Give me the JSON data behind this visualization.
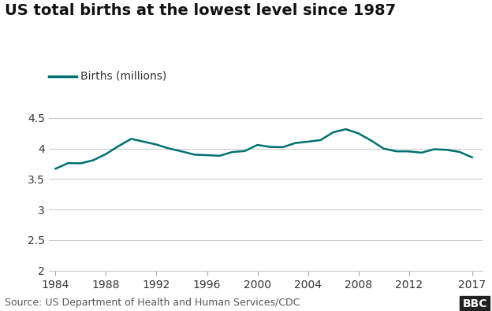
{
  "title": "US total births at the lowest level since 1987",
  "legend_label": "Births (millions)",
  "line_color": "#007070",
  "source_text": "Source: US Department of Health and Human Services/CDC",
  "bbc_text": "BBC",
  "years": [
    1984,
    1985,
    1986,
    1987,
    1988,
    1989,
    1990,
    1991,
    1992,
    1993,
    1994,
    1995,
    1996,
    1997,
    1998,
    1999,
    2000,
    2001,
    2002,
    2003,
    2004,
    2005,
    2006,
    2007,
    2008,
    2009,
    2010,
    2011,
    2012,
    2013,
    2014,
    2015,
    2016,
    2017
  ],
  "births": [
    3.669,
    3.761,
    3.757,
    3.809,
    3.91,
    4.041,
    4.158,
    4.111,
    4.065,
    4.0,
    3.953,
    3.9,
    3.891,
    3.881,
    3.942,
    3.959,
    4.059,
    4.026,
    4.022,
    4.09,
    4.112,
    4.138,
    4.266,
    4.317,
    4.248,
    4.131,
    3.999,
    3.954,
    3.953,
    3.932,
    3.988,
    3.978,
    3.945,
    3.856
  ],
  "ylim": [
    2.0,
    4.65
  ],
  "yticks": [
    2.0,
    2.5,
    3.0,
    3.5,
    4.0,
    4.5
  ],
  "ytick_labels": [
    "2",
    "2.5",
    "3",
    "3.5",
    "4",
    "4.5"
  ],
  "xlim": [
    1983.5,
    2017.8
  ],
  "xticks": [
    1984,
    1988,
    1992,
    1996,
    2000,
    2004,
    2008,
    2012,
    2017
  ],
  "background_color": "#ffffff",
  "grid_color": "#cccccc",
  "title_fontsize": 14,
  "legend_fontsize": 10,
  "tick_fontsize": 10,
  "source_fontsize": 9,
  "line_width": 1.8
}
